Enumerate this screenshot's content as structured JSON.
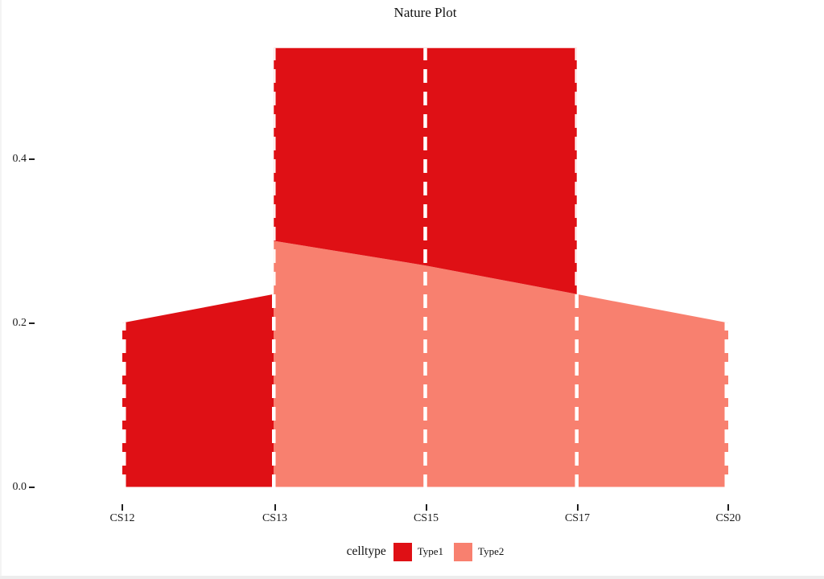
{
  "title": "Nature Plot",
  "colors": {
    "type1": "#DF1015",
    "type2": "#F8806F",
    "guide_line": "#FFFFFF",
    "text": "#1A1A1A",
    "background": "#FFFFFF"
  },
  "y_axis": {
    "tick_labels": [
      "0.0",
      "0.2",
      "0.4"
    ]
  },
  "x_axis": {
    "tick_labels": [
      "CS12",
      "CS13",
      "CS15",
      "CS17",
      "CS20"
    ]
  },
  "legend": {
    "title": "celltype",
    "items": [
      {
        "label": "Type1",
        "color": "#DF1015"
      },
      {
        "label": "Type2",
        "color": "#F8806F"
      }
    ],
    "position": "bottom"
  },
  "chart_data": {
    "type": "area",
    "stacked": true,
    "title": "Nature Plot",
    "xlabel": "",
    "ylabel": "",
    "x_categories": [
      "CS12",
      "CS13",
      "CS15",
      "CS17",
      "CS20"
    ],
    "series": [
      {
        "name": "Type1",
        "color": "#DF1015",
        "values": {
          "CS12": 0.2,
          "CS13": 0.235,
          "CS15": 0.265,
          "CS17": 0.3
        }
      },
      {
        "name": "Type2",
        "color": "#F8806F",
        "values": {
          "CS13": 0.3,
          "CS15": 0.27,
          "CS17": 0.235,
          "CS20": 0.2
        }
      }
    ],
    "stacked_total_CS13_to_CS17": 0.535,
    "ylim": [
      0,
      0.55
    ],
    "y_ticks": [
      0.0,
      0.2,
      0.4
    ],
    "grid": false,
    "legend_position": "bottom",
    "guide_lines": {
      "style": "dashed",
      "color": "#FFFFFF",
      "at": [
        "CS12",
        "CS13",
        "CS15",
        "CS17",
        "CS20"
      ]
    },
    "polygons": [
      {
        "series": "Type1",
        "points": [
          [
            "CS12",
            0
          ],
          [
            "CS12",
            0.2
          ],
          [
            "CS13",
            0.235
          ],
          [
            "CS13",
            0
          ]
        ]
      },
      {
        "series": "Type2",
        "points": [
          [
            "CS13",
            0
          ],
          [
            "CS13",
            0.3
          ],
          [
            "CS15",
            0.27
          ],
          [
            "CS17",
            0.235
          ],
          [
            "CS20",
            0.2
          ],
          [
            "CS20",
            0
          ]
        ]
      },
      {
        "series": "Type1",
        "points": [
          [
            "CS13",
            0.3
          ],
          [
            "CS15",
            0.27
          ],
          [
            "CS17",
            0.235
          ],
          [
            "CS17",
            0.535
          ],
          [
            "CS15",
            0.535
          ],
          [
            "CS13",
            0.535
          ]
        ]
      }
    ]
  }
}
